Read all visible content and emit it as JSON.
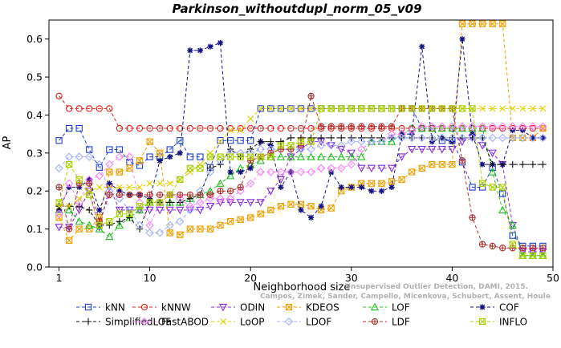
{
  "chart_data": {
    "type": "line",
    "title": "Parkinson_withoutdupl_norm_05_v09",
    "xlabel": "Neighborhood size",
    "ylabel": "AP",
    "xlim": [
      0,
      50
    ],
    "ylim": [
      0,
      0.65
    ],
    "xticks": [
      "1",
      "10",
      "20",
      "30",
      "40",
      "50"
    ],
    "yticks": [
      "0.0",
      "0.1",
      "0.2",
      "0.3",
      "0.4",
      "0.5",
      "0.6"
    ],
    "grid": false,
    "legend_position": "bottom",
    "credit": [
      "Campos, Zimek, Sander, Campello, Micenkova, Schubert, Assent, Houle",
      "Unsupervised Outlier Detection, DAMI, 2015."
    ],
    "series": [
      {
        "name": "kNN",
        "color": "#1f3fd0",
        "marker": "square",
        "values": [
          0.333,
          0.365,
          0.365,
          0.309,
          0.262,
          0.309,
          0.309,
          0.276,
          0.267,
          0.29,
          0.29,
          0.309,
          0.333,
          0.29,
          0.29,
          0.262,
          0.333,
          0.333,
          0.333,
          0.333,
          0.417,
          0.417,
          0.417,
          0.417,
          0.417,
          0.417,
          0.417,
          0.417,
          0.417,
          0.417,
          0.417,
          0.417,
          0.417,
          0.417,
          0.417,
          0.417,
          0.365,
          0.365,
          0.333,
          0.333,
          0.276,
          0.21,
          0.21,
          0.262,
          0.193,
          0.083,
          0.055,
          0.055,
          0.055
        ]
      },
      {
        "name": "kNNW",
        "color": "#e0201a",
        "marker": "circle",
        "values": [
          0.45,
          0.417,
          0.417,
          0.417,
          0.417,
          0.417,
          0.365,
          0.365,
          0.365,
          0.365,
          0.365,
          0.365,
          0.365,
          0.365,
          0.365,
          0.365,
          0.365,
          0.365,
          0.365,
          0.365,
          0.365,
          0.365,
          0.365,
          0.365,
          0.365,
          0.365,
          0.365,
          0.365,
          0.365,
          0.365,
          0.365,
          0.365,
          0.365,
          0.365,
          0.365,
          0.365,
          0.365,
          0.365,
          0.365,
          0.365,
          0.365,
          0.365,
          0.365,
          0.365,
          0.365,
          0.365,
          0.365,
          0.365,
          0.365
        ]
      },
      {
        "name": "ODIN",
        "color": "#8a2be2",
        "marker": "triangle-down",
        "values": [
          0.105,
          0.105,
          0.15,
          0.2,
          0.105,
          0.21,
          0.15,
          0.15,
          0.15,
          0.15,
          0.15,
          0.15,
          0.15,
          0.15,
          0.15,
          0.16,
          0.17,
          0.17,
          0.17,
          0.17,
          0.17,
          0.2,
          0.23,
          0.29,
          0.31,
          0.33,
          0.33,
          0.32,
          0.31,
          0.3,
          0.26,
          0.26,
          0.26,
          0.26,
          0.29,
          0.31,
          0.31,
          0.31,
          0.31,
          0.31,
          0.33,
          0.34,
          0.32,
          0.3,
          0.27,
          0.11,
          0.04,
          0.04,
          0.04
        ]
      },
      {
        "name": "KDEOS",
        "color": "#f0a000",
        "marker": "square-x",
        "values": [
          0.13,
          0.07,
          0.1,
          0.1,
          0.13,
          0.25,
          0.25,
          0.26,
          0.28,
          0.33,
          0.3,
          0.09,
          0.085,
          0.1,
          0.1,
          0.1,
          0.11,
          0.12,
          0.125,
          0.13,
          0.14,
          0.15,
          0.16,
          0.165,
          0.165,
          0.16,
          0.15,
          0.155,
          0.2,
          0.21,
          0.22,
          0.22,
          0.22,
          0.225,
          0.23,
          0.25,
          0.26,
          0.27,
          0.27,
          0.27,
          0.64,
          0.64,
          0.64,
          0.64,
          0.64,
          0.34,
          0.34,
          0.34,
          0.365
        ]
      },
      {
        "name": "LOF",
        "color": "#20c020",
        "marker": "triangle",
        "values": [
          0.15,
          0.15,
          0.12,
          0.11,
          0.1,
          0.08,
          0.11,
          0.13,
          0.15,
          0.17,
          0.17,
          0.17,
          0.17,
          0.18,
          0.19,
          0.2,
          0.22,
          0.24,
          0.26,
          0.27,
          0.28,
          0.29,
          0.29,
          0.29,
          0.29,
          0.29,
          0.29,
          0.29,
          0.29,
          0.29,
          0.29,
          0.33,
          0.33,
          0.33,
          0.35,
          0.365,
          0.365,
          0.365,
          0.365,
          0.365,
          0.365,
          0.365,
          0.365,
          0.25,
          0.15,
          0.11,
          0.03,
          0.03,
          0.03
        ]
      },
      {
        "name": "COF",
        "color": "#101080",
        "marker": "star",
        "values": [
          0.15,
          0.21,
          0.21,
          0.23,
          0.15,
          0.22,
          0.2,
          0.19,
          0.19,
          0.18,
          0.28,
          0.29,
          0.3,
          0.57,
          0.57,
          0.58,
          0.59,
          0.25,
          0.25,
          0.26,
          0.33,
          0.32,
          0.21,
          0.25,
          0.15,
          0.13,
          0.16,
          0.25,
          0.21,
          0.21,
          0.21,
          0.2,
          0.2,
          0.21,
          0.35,
          0.35,
          0.58,
          0.33,
          0.34,
          0.33,
          0.6,
          0.35,
          0.27,
          0.27,
          0.27,
          0.36,
          0.36,
          0.34,
          0.34
        ]
      },
      {
        "name": "SimplifiedLOF",
        "color": "#101010",
        "marker": "plus",
        "values": [
          0.16,
          0.16,
          0.16,
          0.15,
          0.11,
          0.11,
          0.12,
          0.13,
          0.1,
          0.17,
          0.17,
          0.17,
          0.17,
          0.18,
          0.19,
          0.26,
          0.27,
          0.31,
          0.29,
          0.31,
          0.33,
          0.33,
          0.33,
          0.34,
          0.34,
          0.34,
          0.34,
          0.34,
          0.34,
          0.34,
          0.34,
          0.34,
          0.34,
          0.34,
          0.34,
          0.34,
          0.34,
          0.34,
          0.34,
          0.34,
          0.34,
          0.34,
          0.34,
          0.27,
          0.27,
          0.27,
          0.27,
          0.27,
          0.27
        ]
      },
      {
        "name": "FastABOD",
        "color": "#ff80ff",
        "marker": "diamond",
        "values": [
          0.14,
          0.22,
          0.17,
          0.23,
          0.24,
          0.27,
          0.29,
          0.29,
          0.17,
          0.11,
          0.17,
          0.19,
          0.18,
          0.16,
          0.17,
          0.18,
          0.18,
          0.18,
          0.2,
          0.22,
          0.25,
          0.25,
          0.25,
          0.25,
          0.25,
          0.25,
          0.26,
          0.26,
          0.26,
          0.27,
          0.31,
          0.33,
          0.33,
          0.35,
          0.35,
          0.36,
          0.37,
          0.37,
          0.37,
          0.37,
          0.37,
          0.37,
          0.37,
          0.37,
          0.37,
          0.37,
          0.37,
          0.37,
          0.37
        ]
      },
      {
        "name": "LoOP",
        "color": "#e0d000",
        "marker": "x",
        "values": [
          0.16,
          0.16,
          0.18,
          0.2,
          0.21,
          0.21,
          0.21,
          0.21,
          0.21,
          0.22,
          0.22,
          0.22,
          0.23,
          0.25,
          0.27,
          0.3,
          0.33,
          0.36,
          0.36,
          0.39,
          0.417,
          0.417,
          0.417,
          0.417,
          0.417,
          0.417,
          0.417,
          0.417,
          0.417,
          0.417,
          0.417,
          0.417,
          0.417,
          0.417,
          0.417,
          0.417,
          0.417,
          0.417,
          0.417,
          0.417,
          0.417,
          0.417,
          0.417,
          0.417,
          0.417,
          0.417,
          0.417,
          0.417,
          0.417
        ]
      },
      {
        "name": "LDOF",
        "color": "#a0b0ff",
        "marker": "diamond",
        "values": [
          0.26,
          0.29,
          0.29,
          0.29,
          0.27,
          0.2,
          0.18,
          0.15,
          0.11,
          0.09,
          0.09,
          0.11,
          0.12,
          0.15,
          0.2,
          0.25,
          0.28,
          0.3,
          0.3,
          0.3,
          0.31,
          0.31,
          0.31,
          0.31,
          0.31,
          0.31,
          0.32,
          0.32,
          0.32,
          0.33,
          0.33,
          0.33,
          0.33,
          0.34,
          0.34,
          0.34,
          0.34,
          0.34,
          0.34,
          0.34,
          0.34,
          0.34,
          0.34,
          0.34,
          0.34,
          0.34,
          0.34,
          0.34,
          0.34
        ]
      },
      {
        "name": "LDF",
        "color": "#b03030",
        "marker": "circle-plus",
        "values": [
          0.21,
          0.1,
          0.22,
          0.22,
          0.12,
          0.19,
          0.19,
          0.19,
          0.19,
          0.19,
          0.19,
          0.19,
          0.19,
          0.19,
          0.19,
          0.19,
          0.2,
          0.2,
          0.21,
          0.28,
          0.29,
          0.3,
          0.31,
          0.31,
          0.32,
          0.45,
          0.37,
          0.37,
          0.37,
          0.37,
          0.37,
          0.37,
          0.37,
          0.37,
          0.417,
          0.417,
          0.417,
          0.417,
          0.417,
          0.417,
          0.28,
          0.13,
          0.06,
          0.055,
          0.05,
          0.05,
          0.05,
          0.05,
          0.05
        ]
      },
      {
        "name": "INFLO",
        "color": "#a8d000",
        "marker": "square-x",
        "values": [
          0.17,
          0.27,
          0.23,
          0.19,
          0.11,
          0.12,
          0.14,
          0.14,
          0.16,
          0.17,
          0.17,
          0.19,
          0.23,
          0.26,
          0.26,
          0.29,
          0.29,
          0.29,
          0.29,
          0.29,
          0.29,
          0.29,
          0.32,
          0.32,
          0.33,
          0.33,
          0.417,
          0.417,
          0.417,
          0.417,
          0.417,
          0.417,
          0.417,
          0.417,
          0.417,
          0.417,
          0.417,
          0.417,
          0.417,
          0.417,
          0.417,
          0.417,
          0.22,
          0.21,
          0.21,
          0.06,
          0.03,
          0.03,
          0.03
        ]
      }
    ]
  }
}
